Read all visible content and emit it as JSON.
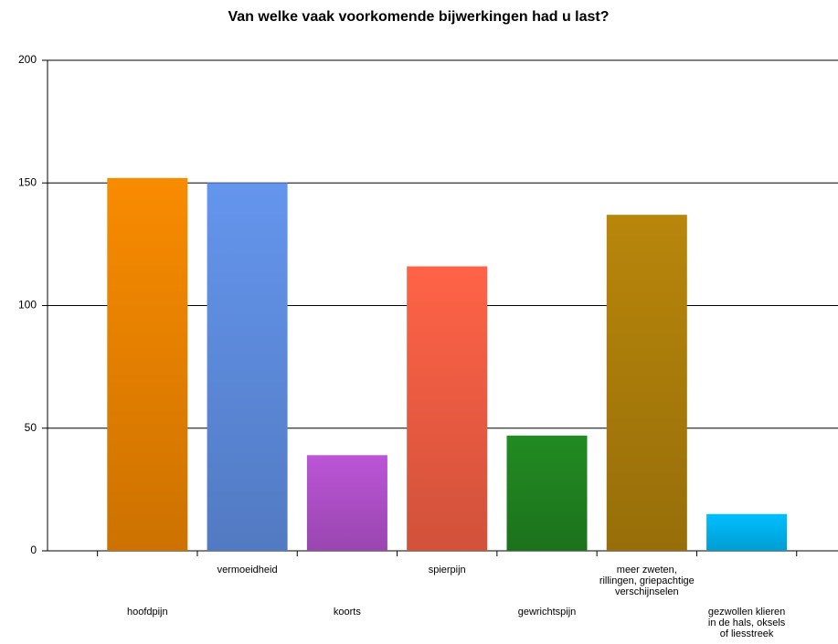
{
  "chart_data": {
    "type": "bar",
    "title": "Van welke vaak voorkomende bijwerkingen had u last?",
    "categories": [
      "hoofdpijn",
      "vermoeidheid",
      "koorts",
      "spierpijn",
      "gewrichtspijn",
      "meer zweten,\nrillingen, griepachtige\nverschijnselen",
      "gezwollen klieren\nin de hals, oksels\nof liesstreek"
    ],
    "values": [
      152,
      150,
      39,
      116,
      47,
      137,
      15
    ],
    "colors": [
      "#f98b00",
      "#6495ed",
      "#bb55d6",
      "#ff6347",
      "#228b22",
      "#b8860b",
      "#00bfff"
    ],
    "ylim": [
      0,
      200
    ],
    "yticks": [
      0,
      50,
      100,
      150,
      200
    ],
    "grid": true
  }
}
